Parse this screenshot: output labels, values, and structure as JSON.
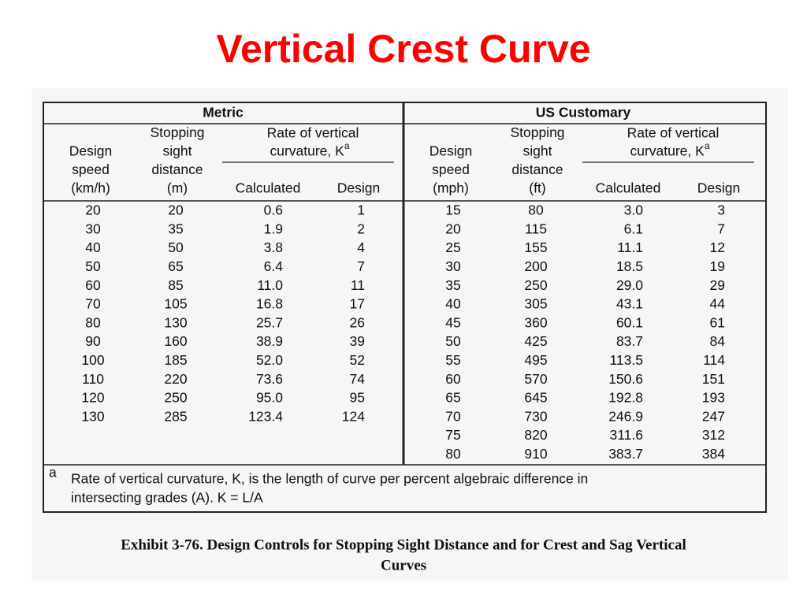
{
  "title": "Vertical Crest Curve",
  "table": {
    "groups": [
      {
        "name": "Metric",
        "speed": [
          "Design",
          "speed",
          "(km/h)"
        ],
        "distance": [
          "Stopping",
          "sight",
          "distance",
          "(m)"
        ],
        "rate": [
          "Rate of vertical",
          "curvature, K"
        ],
        "rate_note": "a",
        "calculated": "Calculated",
        "design": "Design",
        "rows": [
          [
            "20",
            "20",
            "0.6",
            "1"
          ],
          [
            "30",
            "35",
            "1.9",
            "2"
          ],
          [
            "40",
            "50",
            "3.8",
            "4"
          ],
          [
            "50",
            "65",
            "6.4",
            "7"
          ],
          [
            "60",
            "85",
            "11.0",
            "11"
          ],
          [
            "70",
            "105",
            "16.8",
            "17"
          ],
          [
            "80",
            "130",
            "25.7",
            "26"
          ],
          [
            "90",
            "160",
            "38.9",
            "39"
          ],
          [
            "100",
            "185",
            "52.0",
            "52"
          ],
          [
            "110",
            "220",
            "73.6",
            "74"
          ],
          [
            "120",
            "250",
            "95.0",
            "95"
          ],
          [
            "130",
            "285",
            "123.4",
            "124"
          ]
        ]
      },
      {
        "name": "US Customary",
        "speed": [
          "Design",
          "speed",
          "(mph)"
        ],
        "distance": [
          "Stopping",
          "sight",
          "distance",
          "(ft)"
        ],
        "rate": [
          "Rate of vertical",
          "curvature, K"
        ],
        "rate_note": "a",
        "calculated": "Calculated",
        "design": "Design",
        "rows": [
          [
            "15",
            "80",
            "3.0",
            "3"
          ],
          [
            "20",
            "115",
            "6.1",
            "7"
          ],
          [
            "25",
            "155",
            "11.1",
            "12"
          ],
          [
            "30",
            "200",
            "18.5",
            "19"
          ],
          [
            "35",
            "250",
            "29.0",
            "29"
          ],
          [
            "40",
            "305",
            "43.1",
            "44"
          ],
          [
            "45",
            "360",
            "60.1",
            "61"
          ],
          [
            "50",
            "425",
            "83.7",
            "84"
          ],
          [
            "55",
            "495",
            "113.5",
            "114"
          ],
          [
            "60",
            "570",
            "150.6",
            "151"
          ],
          [
            "65",
            "645",
            "192.8",
            "193"
          ],
          [
            "70",
            "730",
            "246.9",
            "247"
          ],
          [
            "75",
            "820",
            "311.6",
            "312"
          ],
          [
            "80",
            "910",
            "383.7",
            "384"
          ]
        ]
      }
    ]
  },
  "footnote": {
    "mark": "a",
    "lines": [
      "Rate of vertical curvature, K, is the length of curve per percent algebraic difference in",
      "intersecting grades (A).  K = L/A"
    ]
  },
  "caption": [
    "Exhibit 3-76.  Design Controls for Stopping Sight Distance and for Crest and Sag Vertical",
    "Curves"
  ]
}
